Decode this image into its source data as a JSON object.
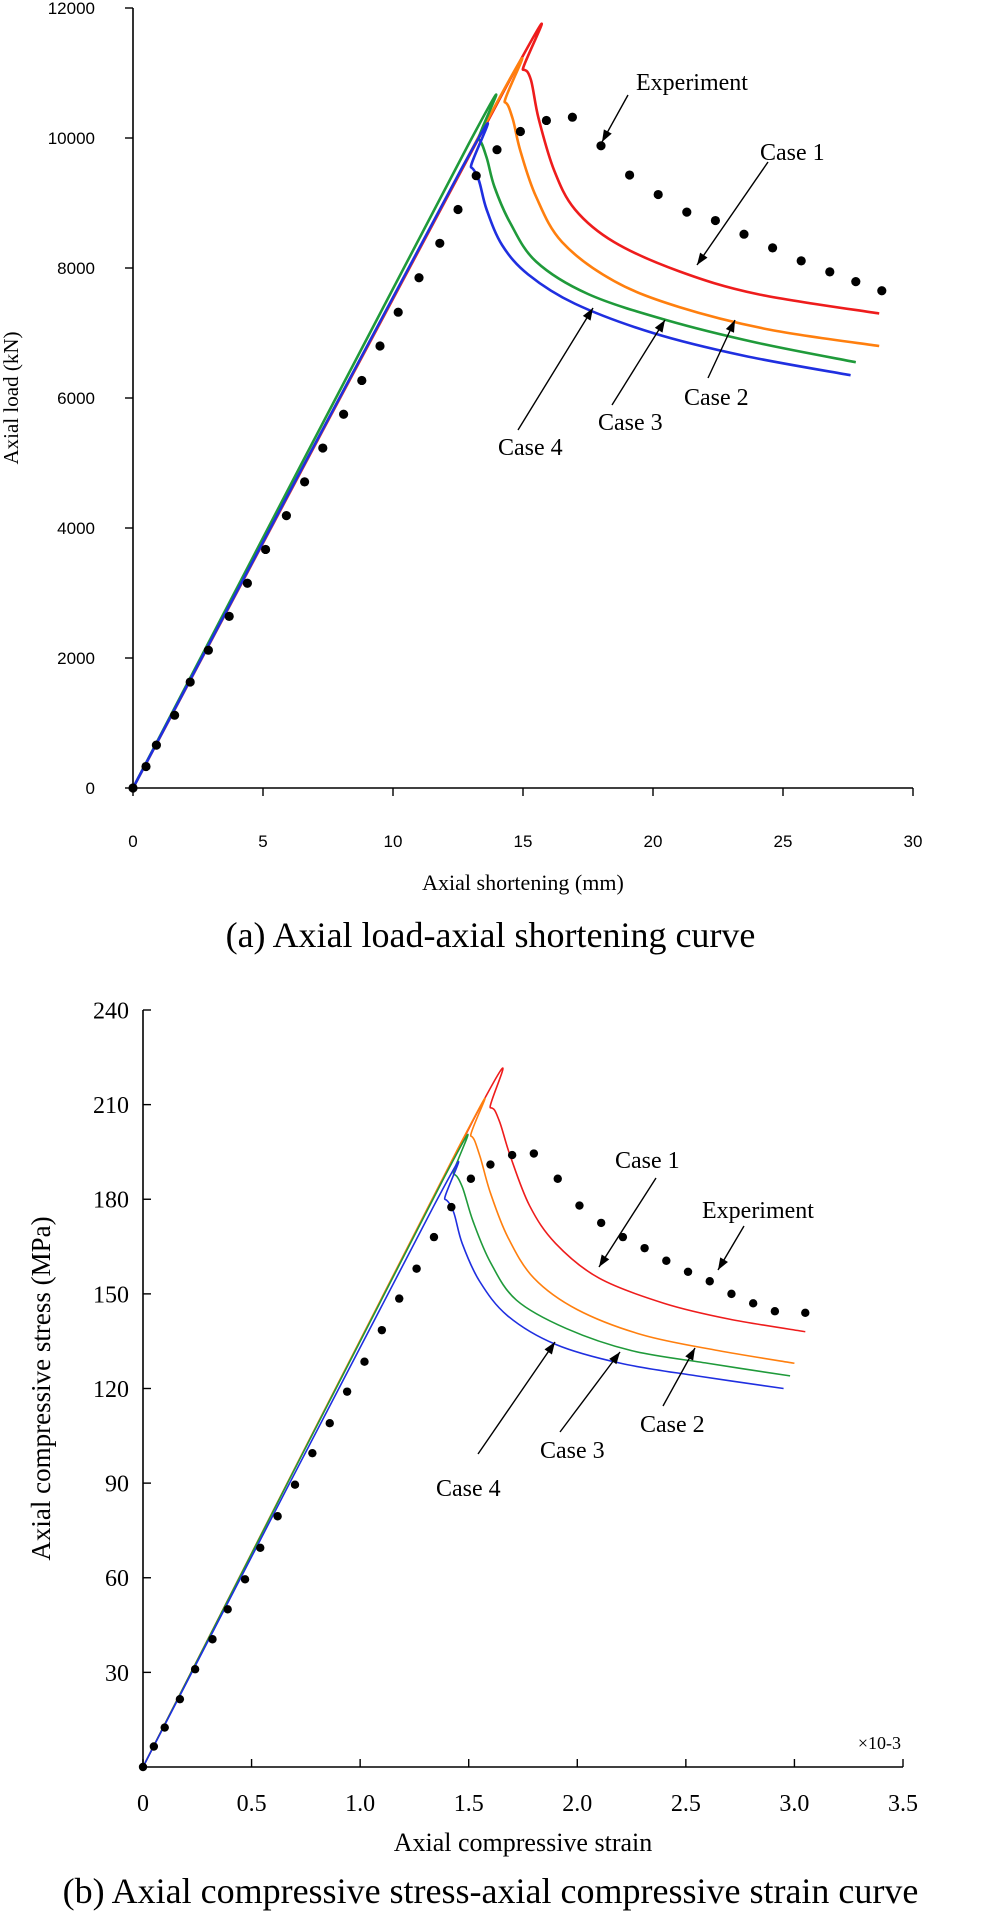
{
  "captions": {
    "a": "(a) Axial load-axial shortening curve",
    "b": "(b) Axial compressive stress-axial compressive strain curve"
  },
  "colors": {
    "case1": "#ee1c1c",
    "case2": "#ff7f0e",
    "case3": "#1f9a3a",
    "case4": "#1f2fe0",
    "experiment": "#000000"
  },
  "chart_data": [
    {
      "type": "line",
      "title": "",
      "xlabel": "Axial shortening (mm)",
      "ylabel": "Axial load (kN)",
      "xlim": [
        0,
        30
      ],
      "ylim": [
        0,
        12000
      ],
      "x_ticks": [
        0,
        5,
        10,
        15,
        20,
        25,
        30
      ],
      "x_tick_labels": [
        "0",
        "5",
        "10",
        "15",
        "20",
        "25",
        "30"
      ],
      "y_ticks": [
        0,
        2000,
        4000,
        6000,
        8000,
        10000,
        12000
      ],
      "y_tick_labels": [
        "0",
        "2000",
        "4000",
        "6000",
        "8000",
        "10000",
        "12000"
      ],
      "series": [
        {
          "name": "Case 1",
          "color_key": "case1",
          "style": "line",
          "x": [
            0,
            14.5,
            15.0,
            15.3,
            15.6,
            16.2,
            17.0,
            18.5,
            21.0,
            24.0,
            28.7
          ],
          "y": [
            0,
            10900,
            11050,
            10900,
            10300,
            9500,
            8900,
            8400,
            7950,
            7600,
            7300
          ]
        },
        {
          "name": "Case 2",
          "color_key": "case2",
          "style": "line",
          "x": [
            0,
            13.8,
            14.3,
            14.6,
            14.9,
            15.5,
            16.5,
            18.5,
            21.0,
            24.5,
            28.7
          ],
          "y": [
            0,
            10400,
            10550,
            10300,
            9800,
            9100,
            8400,
            7800,
            7400,
            7050,
            6800
          ]
        },
        {
          "name": "Case 3",
          "color_key": "case3",
          "style": "line",
          "x": [
            0,
            12.9,
            13.3,
            13.6,
            13.9,
            14.5,
            15.5,
            17.5,
            20.5,
            24.0,
            27.8
          ],
          "y": [
            0,
            9900,
            9980,
            9700,
            9250,
            8700,
            8100,
            7600,
            7200,
            6850,
            6550
          ]
        },
        {
          "name": "Case 4",
          "color_key": "case4",
          "style": "line",
          "x": [
            0,
            12.6,
            13.0,
            13.3,
            13.6,
            14.2,
            15.2,
            17.0,
            20.0,
            23.5,
            27.6
          ],
          "y": [
            0,
            9500,
            9550,
            9350,
            8900,
            8350,
            7900,
            7450,
            7000,
            6650,
            6350
          ]
        },
        {
          "name": "Experiment",
          "color_key": "experiment",
          "style": "markers",
          "x": [
            0,
            0.5,
            0.9,
            1.6,
            2.2,
            2.9,
            3.7,
            4.4,
            5.1,
            5.9,
            6.6,
            7.3,
            8.1,
            8.8,
            9.5,
            10.2,
            11.0,
            11.8,
            12.5,
            13.2,
            14.0,
            14.9,
            15.9,
            16.9,
            18.0,
            19.1,
            20.2,
            21.3,
            22.4,
            23.5,
            24.6,
            25.7,
            26.8,
            27.8,
            28.8
          ],
          "y": [
            0,
            330,
            660,
            1120,
            1630,
            2120,
            2640,
            3150,
            3670,
            4190,
            4710,
            5230,
            5750,
            6270,
            6800,
            7320,
            7850,
            8380,
            8900,
            9420,
            9820,
            10100,
            10270,
            10320,
            9880,
            9430,
            9130,
            8860,
            8730,
            8520,
            8310,
            8110,
            7940,
            7790,
            7650
          ]
        }
      ],
      "annotations": [
        {
          "text": "Experiment",
          "series": "Experiment"
        },
        {
          "text": "Case 1",
          "series": "Case 1"
        },
        {
          "text": "Case 2",
          "series": "Case 2"
        },
        {
          "text": "Case 3",
          "series": "Case 3"
        },
        {
          "text": "Case 4",
          "series": "Case 4"
        }
      ]
    },
    {
      "type": "line",
      "title": "",
      "xlabel": "Axial compressive strain",
      "ylabel": "Axial compressive stress (MPa)",
      "x_scale_label": "×10-3",
      "xlim": [
        0,
        3.5
      ],
      "ylim": [
        0,
        240
      ],
      "x_ticks": [
        0,
        0.5,
        1.0,
        1.5,
        2.0,
        2.5,
        3.0,
        3.5
      ],
      "x_tick_labels": [
        "0",
        "0.5",
        "1.0",
        "1.5",
        "2.0",
        "2.5",
        "3.0",
        "3.5"
      ],
      "y_ticks": [
        30,
        60,
        90,
        120,
        150,
        180,
        210,
        240
      ],
      "y_tick_labels": [
        "30",
        "60",
        "90",
        "120",
        "150",
        "180",
        "210",
        "240"
      ],
      "series": [
        {
          "name": "Case 1",
          "color_key": "case1",
          "style": "line",
          "x": [
            0,
            1.52,
            1.6,
            1.64,
            1.69,
            1.78,
            1.9,
            2.1,
            2.4,
            2.7,
            3.05
          ],
          "y": [
            0,
            205,
            209,
            205,
            194,
            178,
            166,
            155,
            147,
            142,
            138
          ]
        },
        {
          "name": "Case 2",
          "color_key": "case2",
          "style": "line",
          "x": [
            0,
            1.45,
            1.51,
            1.55,
            1.6,
            1.68,
            1.8,
            2.0,
            2.3,
            2.65,
            3.0
          ],
          "y": [
            0,
            196,
            200,
            194,
            182,
            168,
            155,
            145,
            137,
            132,
            128
          ]
        },
        {
          "name": "Case 3",
          "color_key": "case3",
          "style": "line",
          "x": [
            0,
            1.38,
            1.43,
            1.47,
            1.52,
            1.6,
            1.72,
            1.95,
            2.25,
            2.6,
            2.98
          ],
          "y": [
            0,
            186,
            188,
            184,
            173,
            160,
            148,
            139,
            132,
            128,
            124
          ]
        },
        {
          "name": "Case 4",
          "color_key": "case4",
          "style": "line",
          "x": [
            0,
            1.34,
            1.39,
            1.43,
            1.47,
            1.55,
            1.68,
            1.9,
            2.2,
            2.55,
            2.95
          ],
          "y": [
            0,
            178,
            180,
            176,
            166,
            154,
            143,
            134,
            128,
            124,
            120
          ]
        },
        {
          "name": "Experiment",
          "color_key": "experiment",
          "style": "markers",
          "x": [
            0,
            0.05,
            0.1,
            0.17,
            0.24,
            0.32,
            0.39,
            0.47,
            0.54,
            0.62,
            0.7,
            0.78,
            0.86,
            0.94,
            1.02,
            1.1,
            1.18,
            1.26,
            1.34,
            1.42,
            1.51,
            1.6,
            1.7,
            1.8,
            1.91,
            2.01,
            2.11,
            2.21,
            2.31,
            2.41,
            2.51,
            2.61,
            2.71,
            2.81,
            2.91,
            3.05
          ],
          "y": [
            0,
            6.5,
            12.5,
            21.5,
            31,
            40.5,
            50,
            59.5,
            69.5,
            79.5,
            89.5,
            99.5,
            109,
            119,
            128.5,
            138.5,
            148.5,
            158,
            168,
            177.5,
            186.5,
            191,
            194,
            194.5,
            186.5,
            178,
            172.5,
            168,
            164.5,
            160.5,
            157,
            154,
            150,
            147,
            144.5,
            144
          ]
        }
      ],
      "annotations": [
        {
          "text": "Experiment",
          "series": "Experiment"
        },
        {
          "text": "Case 1",
          "series": "Case 1"
        },
        {
          "text": "Case 2",
          "series": "Case 2"
        },
        {
          "text": "Case 3",
          "series": "Case 3"
        },
        {
          "text": "Case 4",
          "series": "Case 4"
        }
      ]
    }
  ]
}
